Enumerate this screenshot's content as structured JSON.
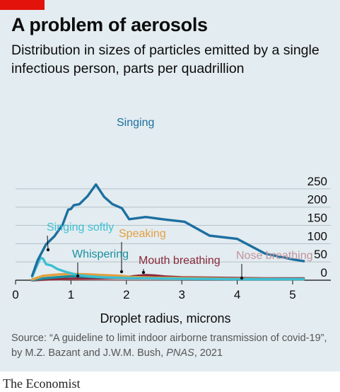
{
  "header": {
    "title": "A problem of aerosols",
    "subtitle": "Distribution in sizes of particles emitted by a single infectious person, parts per quadrillion"
  },
  "footer": {
    "source_prefix": "Source: “A guideline to limit indoor airborne transmission of covid-19”, by M.Z. Bazant and J.W.M. Bush, ",
    "source_journal": "PNAS",
    "source_suffix": ", 2021",
    "brand": "The Economist"
  },
  "colors": {
    "background": "#e3ecf0",
    "grid": "#b4c2ca",
    "accent_red": "#e3120b"
  },
  "chart_data": {
    "type": "line",
    "xlabel": "Droplet radius, microns",
    "ylabel": "",
    "xlim": [
      0,
      5.5
    ],
    "ylim": [
      0,
      270
    ],
    "x_ticks": [
      "0",
      "1",
      "2",
      "3",
      "4",
      "5"
    ],
    "y_ticks": [
      "0",
      "50",
      "100",
      "150",
      "200",
      "250"
    ],
    "grid": true,
    "legend": "inline labels",
    "series": [
      {
        "name": "Nose breathing",
        "color": "#c2949c",
        "points": [
          [
            0.3,
            0
          ],
          [
            0.6,
            2
          ],
          [
            1.0,
            3
          ],
          [
            1.5,
            3
          ],
          [
            2.0,
            3
          ],
          [
            2.5,
            3
          ],
          [
            3.0,
            3
          ],
          [
            3.5,
            3
          ],
          [
            4.0,
            3
          ],
          [
            4.5,
            3
          ],
          [
            5.0,
            3
          ],
          [
            5.2,
            3
          ]
        ]
      },
      {
        "name": "Mouth breathing",
        "color": "#8b2a3c",
        "points": [
          [
            0.3,
            0
          ],
          [
            0.6,
            3
          ],
          [
            1.0,
            4
          ],
          [
            1.5,
            5
          ],
          [
            1.8,
            7
          ],
          [
            2.0,
            9
          ],
          [
            2.2,
            12
          ],
          [
            2.35,
            14
          ],
          [
            2.5,
            13
          ],
          [
            2.7,
            10
          ],
          [
            3.0,
            8
          ],
          [
            3.5,
            7
          ],
          [
            4.0,
            6
          ],
          [
            4.5,
            5
          ],
          [
            5.0,
            5
          ],
          [
            5.2,
            5
          ]
        ]
      },
      {
        "name": "Whispering",
        "color": "#1a8fa0",
        "points": [
          [
            0.3,
            0
          ],
          [
            0.5,
            5
          ],
          [
            0.8,
            9
          ],
          [
            1.0,
            11
          ],
          [
            1.2,
            10
          ],
          [
            1.5,
            8
          ],
          [
            2.0,
            6
          ],
          [
            2.5,
            5
          ],
          [
            3.0,
            4
          ],
          [
            4.0,
            3
          ],
          [
            5.0,
            3
          ],
          [
            5.2,
            3
          ]
        ]
      },
      {
        "name": "Speaking",
        "color": "#e3a040",
        "points": [
          [
            0.3,
            2
          ],
          [
            0.5,
            12
          ],
          [
            0.8,
            16
          ],
          [
            1.0,
            17
          ],
          [
            1.3,
            16
          ],
          [
            1.6,
            14
          ],
          [
            1.9,
            12
          ],
          [
            2.1,
            9
          ],
          [
            2.5,
            7
          ],
          [
            3.0,
            6
          ],
          [
            3.5,
            5
          ],
          [
            4.0,
            4
          ],
          [
            5.0,
            3
          ],
          [
            5.2,
            3
          ]
        ]
      },
      {
        "name": "Singing softly",
        "color": "#3dbfd2",
        "points": [
          [
            0.3,
            10
          ],
          [
            0.4,
            45
          ],
          [
            0.45,
            62
          ],
          [
            0.5,
            58
          ],
          [
            0.55,
            44
          ],
          [
            0.65,
            40
          ],
          [
            0.75,
            31
          ],
          [
            0.9,
            23
          ],
          [
            1.1,
            15
          ],
          [
            1.3,
            11
          ],
          [
            1.6,
            8
          ],
          [
            2.0,
            6
          ],
          [
            2.5,
            5
          ],
          [
            3.0,
            4
          ],
          [
            4.0,
            3
          ],
          [
            5.0,
            3
          ],
          [
            5.2,
            3
          ]
        ]
      },
      {
        "name": "Singing",
        "color": "#1c6fa0",
        "points": [
          [
            0.3,
            12
          ],
          [
            0.4,
            55
          ],
          [
            0.55,
            98
          ],
          [
            0.7,
            120
          ],
          [
            0.85,
            152
          ],
          [
            0.95,
            193
          ],
          [
            1.0,
            195
          ],
          [
            1.05,
            205
          ],
          [
            1.15,
            208
          ],
          [
            1.3,
            230
          ],
          [
            1.45,
            262
          ],
          [
            1.6,
            228
          ],
          [
            1.75,
            208
          ],
          [
            1.92,
            197
          ],
          [
            2.05,
            167
          ],
          [
            2.35,
            173
          ],
          [
            2.7,
            166
          ],
          [
            3.05,
            160
          ],
          [
            3.5,
            122
          ],
          [
            4.0,
            113
          ],
          [
            4.5,
            73
          ],
          [
            5.0,
            57
          ],
          [
            5.2,
            52
          ]
        ]
      }
    ],
    "annotations": [
      {
        "series": "Singing",
        "text": "Singing"
      },
      {
        "series": "Singing softly",
        "text": "Singing softly"
      },
      {
        "series": "Speaking",
        "text": "Speaking"
      },
      {
        "series": "Whispering",
        "text": "Whispering"
      },
      {
        "series": "Mouth breathing",
        "text": "Mouth breathing"
      },
      {
        "series": "Nose breathing",
        "text": "Nose breathing"
      }
    ]
  }
}
